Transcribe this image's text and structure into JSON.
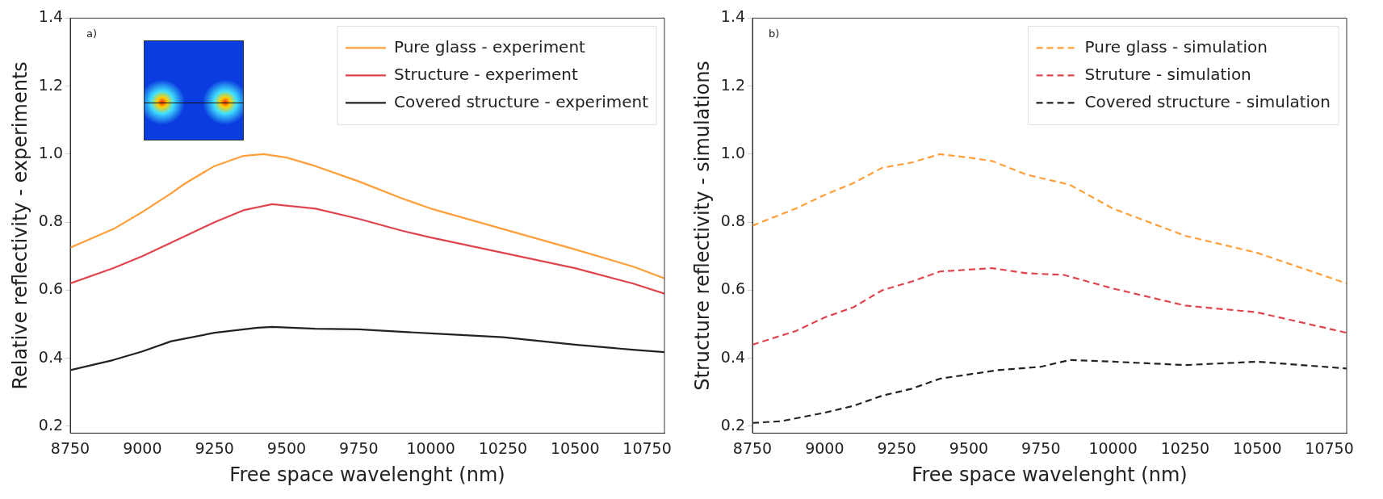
{
  "chart_data": [
    {
      "type": "line",
      "annotations": [
        "a)"
      ],
      "xlabel": "Free space wavelenght (nm)",
      "ylabel": "Relative reflectivity - experiments",
      "xlim": [
        8750,
        10810
      ],
      "xticks": [
        8750,
        9000,
        9250,
        9500,
        9750,
        10000,
        10250,
        10500,
        10750
      ],
      "ylim": [
        0.18,
        1.4
      ],
      "yticks": [
        {
          "value": 0.2,
          "label": "0.2"
        },
        {
          "value": 0.4,
          "label": "0.4"
        },
        {
          "value": 0.6,
          "label": "0.6"
        },
        {
          "value": 0.8,
          "label": "0.8"
        },
        {
          "value": 1,
          "label": "1.0"
        },
        {
          "value": 1.2,
          "label": "1.2"
        },
        {
          "value": 1.4,
          "label": "1.4"
        }
      ],
      "grid": false,
      "legend": "top right",
      "line_style": "solid",
      "marker": "none",
      "series": [
        {
          "name": "Pure glass - experiment",
          "color": "#ff9f3a",
          "x": [
            8750,
            8900,
            9000,
            9100,
            9150,
            9250,
            9350,
            9420,
            9500,
            9600,
            9750,
            9900,
            10000,
            10250,
            10500,
            10700,
            10810
          ],
          "values": [
            0.725,
            0.78,
            0.83,
            0.885,
            0.915,
            0.965,
            0.995,
            1.0,
            0.99,
            0.965,
            0.92,
            0.87,
            0.84,
            0.78,
            0.72,
            0.67,
            0.635
          ]
        },
        {
          "name": "Structure - experiment",
          "color": "#e0454f",
          "x": [
            8750,
            8900,
            9000,
            9100,
            9250,
            9350,
            9450,
            9600,
            9750,
            9900,
            10000,
            10250,
            10500,
            10700,
            10810
          ],
          "values": [
            0.62,
            0.665,
            0.7,
            0.74,
            0.8,
            0.835,
            0.853,
            0.84,
            0.81,
            0.775,
            0.755,
            0.71,
            0.665,
            0.62,
            0.59
          ]
        },
        {
          "name": "Covered structure - experiment",
          "color": "#222222",
          "x": [
            8750,
            8900,
            9000,
            9100,
            9250,
            9400,
            9450,
            9600,
            9750,
            10000,
            10250,
            10500,
            10700,
            10810
          ],
          "values": [
            0.365,
            0.395,
            0.42,
            0.45,
            0.475,
            0.49,
            0.492,
            0.487,
            0.485,
            0.473,
            0.462,
            0.44,
            0.425,
            0.418
          ]
        }
      ]
    },
    {
      "type": "line",
      "annotations": [
        "b)"
      ],
      "xlabel": "Free space wavelenght (nm)",
      "ylabel": "Structure reflectivity - simulations",
      "xlim": [
        8750,
        10810
      ],
      "xticks": [
        8750,
        9000,
        9250,
        9500,
        9750,
        10000,
        10250,
        10500,
        10750
      ],
      "ylim": [
        0.18,
        1.4
      ],
      "yticks": [
        {
          "value": 0.2,
          "label": "0.2"
        },
        {
          "value": 0.4,
          "label": "0.4"
        },
        {
          "value": 0.6,
          "label": "0.6"
        },
        {
          "value": 0.8,
          "label": "0.8"
        },
        {
          "value": 1,
          "label": "1.0"
        },
        {
          "value": 1.2,
          "label": "1.2"
        },
        {
          "value": 1.4,
          "label": "1.4"
        }
      ],
      "grid": false,
      "legend": "top right",
      "line_style": "dashed",
      "marker": "none",
      "series": [
        {
          "name": "Pure glass - simulation",
          "color": "#ff9f3a",
          "x": [
            8750,
            8900,
            9000,
            9100,
            9200,
            9300,
            9400,
            9500,
            9580,
            9700,
            9800,
            9850,
            10000,
            10250,
            10500,
            10810
          ],
          "values": [
            0.79,
            0.84,
            0.88,
            0.915,
            0.96,
            0.975,
            1.0,
            0.99,
            0.98,
            0.94,
            0.92,
            0.91,
            0.84,
            0.76,
            0.71,
            0.62
          ]
        },
        {
          "name": "Struture - simulation",
          "color": "#e0454f",
          "x": [
            8750,
            8900,
            9000,
            9100,
            9200,
            9300,
            9400,
            9580,
            9700,
            9830,
            10000,
            10250,
            10500,
            10810
          ],
          "values": [
            0.44,
            0.48,
            0.52,
            0.55,
            0.6,
            0.625,
            0.655,
            0.665,
            0.65,
            0.645,
            0.605,
            0.555,
            0.535,
            0.475
          ]
        },
        {
          "name": "Covered structure - simulation",
          "color": "#222222",
          "x": [
            8750,
            8850,
            9000,
            9100,
            9200,
            9300,
            9400,
            9600,
            9750,
            9850,
            10000,
            10250,
            10500,
            10810
          ],
          "values": [
            0.21,
            0.215,
            0.24,
            0.26,
            0.29,
            0.31,
            0.34,
            0.365,
            0.375,
            0.395,
            0.39,
            0.38,
            0.39,
            0.37
          ]
        }
      ]
    }
  ]
}
